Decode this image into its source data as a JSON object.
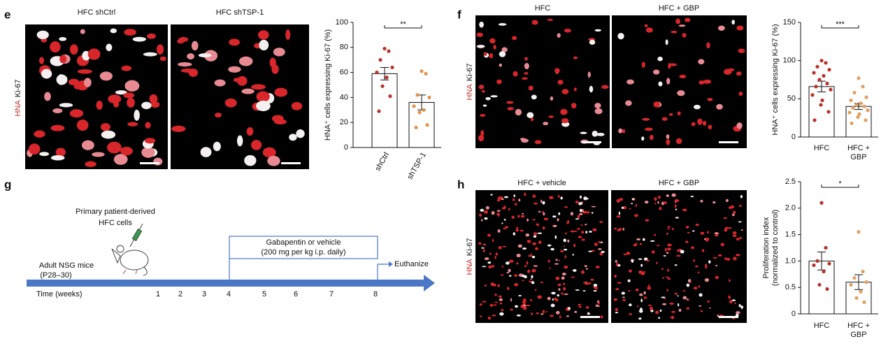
{
  "panels": {
    "e": "e",
    "f": "f",
    "g": "g",
    "h": "h"
  },
  "images": {
    "e": [
      "HFC shCtrl",
      "HFC shTSP-1"
    ],
    "f": [
      "HFC",
      "HFC + GBP"
    ],
    "h": [
      "HFC + vehicle",
      "HFC + GBP"
    ],
    "stain": {
      "red": "HNA",
      "white": "Ki-67"
    }
  },
  "chart_data": [
    {
      "type": "bar",
      "ylabel": [
        "HNA⁺ cells expressing Ki-67 (%)"
      ],
      "categories": [
        "shCtrl",
        "shTSP-1"
      ],
      "values": [
        59,
        36
      ],
      "errors": [
        5,
        6
      ],
      "points": [
        [
          79,
          77,
          70,
          64,
          60,
          56,
          49,
          41,
          29
        ],
        [
          61,
          59,
          42,
          40,
          33,
          30,
          28,
          18,
          16
        ]
      ],
      "point_colors": [
        "#b8322a",
        "#e0944c"
      ],
      "significance": "**",
      "ylim": [
        0,
        100
      ],
      "yticks": [
        0,
        20,
        40,
        60,
        80,
        100
      ]
    },
    {
      "type": "bar",
      "ylabel": [
        "HNA⁺ cells expressing Ki-67 (%)"
      ],
      "categories": [
        "HFC",
        "HFC + GBP"
      ],
      "values": [
        66,
        40
      ],
      "errors": [
        7,
        4
      ],
      "points": [
        [
          100,
          97,
          92,
          88,
          84,
          80,
          75,
          70,
          66,
          62,
          55,
          48,
          42,
          33,
          22
        ],
        [
          77,
          66,
          58,
          52,
          48,
          44,
          42,
          40,
          38,
          35,
          32,
          30,
          26,
          22,
          18
        ]
      ],
      "point_colors": [
        "#b8322a",
        "#e0a060"
      ],
      "significance": "***",
      "ylim": [
        0,
        150
      ],
      "yticks": [
        0,
        50,
        100,
        150
      ]
    },
    {
      "type": "bar",
      "ylabel": [
        "Proliferation index",
        "(normalized to control)"
      ],
      "categories": [
        "HFC",
        "HFC + GBP"
      ],
      "values": [
        1.0,
        0.6
      ],
      "errors": [
        0.17,
        0.14
      ],
      "points": [
        [
          2.1,
          1.25,
          1.0,
          0.95,
          0.92,
          0.8,
          0.55,
          0.47
        ],
        [
          1.55,
          0.8,
          0.68,
          0.6,
          0.55,
          0.42,
          0.3,
          0.22
        ]
      ],
      "point_colors": [
        "#b8322a",
        "#e0a060"
      ],
      "significance": "*",
      "ylim": [
        0,
        2.5
      ],
      "yticks": [
        0,
        0.5,
        {
          "value": 1,
          "label": "1.0"
        },
        1.5,
        {
          "value": 2,
          "label": "2.0"
        },
        2.5
      ]
    }
  ],
  "timeline": {
    "cells": [
      "Primary patient-derived",
      "HFC cells"
    ],
    "mice": [
      "Adult NSG mice",
      "(P28–30)"
    ],
    "treatment": [
      "Gabapentin or vehicle",
      "(200 mg per kg i.p. daily)"
    ],
    "end": "Euthanize",
    "axis_label": "Time (weeks)",
    "weeks": [
      1,
      2,
      3,
      4,
      5,
      6,
      7,
      8
    ]
  }
}
